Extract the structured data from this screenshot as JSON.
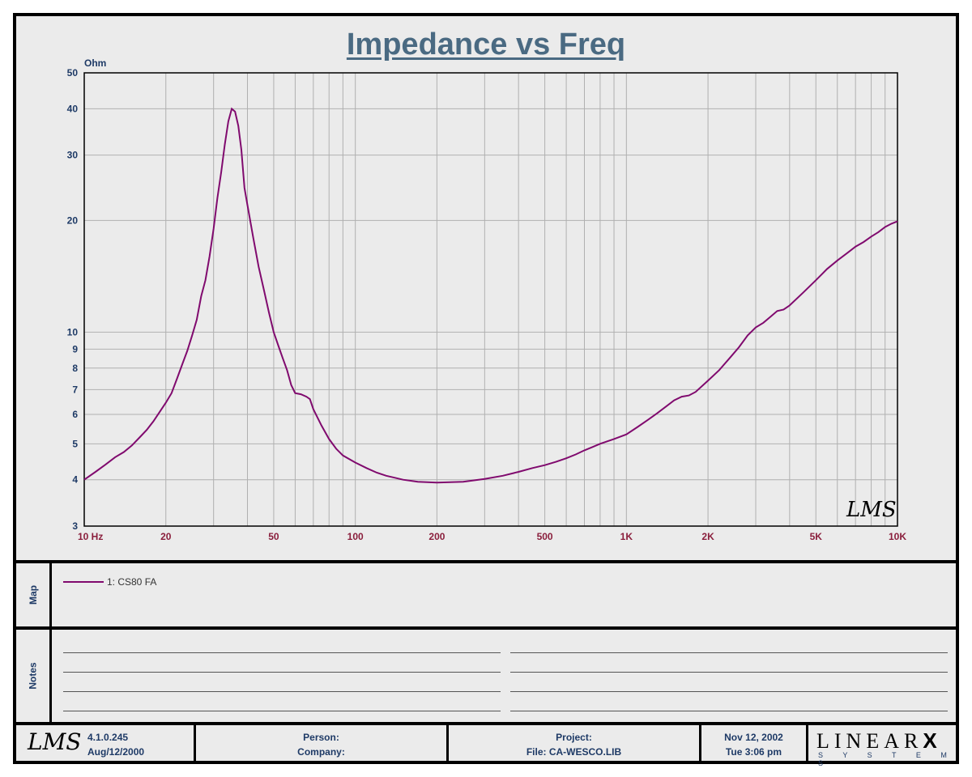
{
  "chart_data": {
    "type": "line",
    "title": "Impedance vs Freq",
    "ylabel": "Ohm",
    "xlabel": "",
    "x_scale": "log",
    "y_scale": "log",
    "xlim": [
      10,
      10000
    ],
    "ylim": [
      3,
      50
    ],
    "grid": true,
    "x_ticks": [
      {
        "v": 10,
        "label": "10  Hz"
      },
      {
        "v": 20,
        "label": "20"
      },
      {
        "v": 50,
        "label": "50"
      },
      {
        "v": 100,
        "label": "100"
      },
      {
        "v": 200,
        "label": "200"
      },
      {
        "v": 500,
        "label": "500"
      },
      {
        "v": 1000,
        "label": "1K"
      },
      {
        "v": 2000,
        "label": "2K"
      },
      {
        "v": 5000,
        "label": "5K"
      },
      {
        "v": 10000,
        "label": "10K"
      }
    ],
    "y_ticks": [
      {
        "v": 3,
        "label": "3"
      },
      {
        "v": 4,
        "label": "4"
      },
      {
        "v": 5,
        "label": "5"
      },
      {
        "v": 6,
        "label": "6"
      },
      {
        "v": 7,
        "label": "7"
      },
      {
        "v": 8,
        "label": "8"
      },
      {
        "v": 9,
        "label": "9"
      },
      {
        "v": 10,
        "label": "10"
      },
      {
        "v": 20,
        "label": "20"
      },
      {
        "v": 30,
        "label": "30"
      },
      {
        "v": 40,
        "label": "40"
      },
      {
        "v": 50,
        "label": "50"
      }
    ],
    "series": [
      {
        "name": "1: CS80 FA",
        "color": "#800a6e",
        "points": [
          [
            10,
            4.0
          ],
          [
            11,
            4.2
          ],
          [
            12,
            4.4
          ],
          [
            13,
            4.6
          ],
          [
            14,
            4.75
          ],
          [
            15,
            4.95
          ],
          [
            16,
            5.2
          ],
          [
            17,
            5.45
          ],
          [
            18,
            5.75
          ],
          [
            19,
            6.1
          ],
          [
            20,
            6.45
          ],
          [
            21,
            6.85
          ],
          [
            22,
            7.5
          ],
          [
            23,
            8.2
          ],
          [
            24,
            8.9
          ],
          [
            25,
            9.8
          ],
          [
            26,
            10.8
          ],
          [
            27,
            12.5
          ],
          [
            28,
            13.8
          ],
          [
            29,
            16.0
          ],
          [
            30,
            19.0
          ],
          [
            31,
            23.0
          ],
          [
            32,
            27.0
          ],
          [
            33,
            32.0
          ],
          [
            34,
            37.0
          ],
          [
            35,
            40.0
          ],
          [
            36,
            39.3
          ],
          [
            37,
            36.0
          ],
          [
            38,
            31.0
          ],
          [
            39,
            24.5
          ],
          [
            40,
            22.0
          ],
          [
            42,
            18.0
          ],
          [
            44,
            15.0
          ],
          [
            46,
            13.0
          ],
          [
            48,
            11.3
          ],
          [
            50,
            10.0
          ],
          [
            52,
            9.2
          ],
          [
            54,
            8.5
          ],
          [
            56,
            7.9
          ],
          [
            58,
            7.2
          ],
          [
            60,
            6.85
          ],
          [
            63,
            6.8
          ],
          [
            66,
            6.7
          ],
          [
            68,
            6.6
          ],
          [
            70,
            6.2
          ],
          [
            75,
            5.6
          ],
          [
            80,
            5.15
          ],
          [
            85,
            4.85
          ],
          [
            90,
            4.65
          ],
          [
            100,
            4.45
          ],
          [
            110,
            4.3
          ],
          [
            120,
            4.18
          ],
          [
            130,
            4.1
          ],
          [
            140,
            4.05
          ],
          [
            150,
            4.0
          ],
          [
            170,
            3.95
          ],
          [
            200,
            3.93
          ],
          [
            250,
            3.95
          ],
          [
            300,
            4.02
          ],
          [
            350,
            4.1
          ],
          [
            400,
            4.2
          ],
          [
            450,
            4.3
          ],
          [
            500,
            4.38
          ],
          [
            550,
            4.47
          ],
          [
            600,
            4.57
          ],
          [
            650,
            4.68
          ],
          [
            700,
            4.8
          ],
          [
            750,
            4.9
          ],
          [
            800,
            5.0
          ],
          [
            900,
            5.15
          ],
          [
            1000,
            5.3
          ],
          [
            1100,
            5.55
          ],
          [
            1200,
            5.8
          ],
          [
            1300,
            6.05
          ],
          [
            1400,
            6.3
          ],
          [
            1500,
            6.55
          ],
          [
            1600,
            6.7
          ],
          [
            1700,
            6.75
          ],
          [
            1800,
            6.9
          ],
          [
            2000,
            7.4
          ],
          [
            2200,
            7.9
          ],
          [
            2400,
            8.5
          ],
          [
            2600,
            9.1
          ],
          [
            2800,
            9.8
          ],
          [
            3000,
            10.3
          ],
          [
            3200,
            10.6
          ],
          [
            3400,
            11.0
          ],
          [
            3600,
            11.4
          ],
          [
            3800,
            11.5
          ],
          [
            4000,
            11.8
          ],
          [
            4500,
            12.8
          ],
          [
            5000,
            13.8
          ],
          [
            5500,
            14.8
          ],
          [
            6000,
            15.6
          ],
          [
            6500,
            16.3
          ],
          [
            7000,
            17.0
          ],
          [
            7500,
            17.5
          ],
          [
            8000,
            18.1
          ],
          [
            8500,
            18.6
          ],
          [
            9000,
            19.2
          ],
          [
            9500,
            19.6
          ],
          [
            10000,
            19.9
          ]
        ]
      }
    ],
    "watermark_text": "LMS"
  },
  "map": {
    "label": "Map",
    "legend_entry": "1: CS80 FA"
  },
  "notes": {
    "label": "Notes"
  },
  "footer": {
    "logo": "LMS",
    "version": "4.1.0.245",
    "version_date": "Aug/12/2000",
    "person_label": "Person:",
    "company_label": "Company:",
    "project_label": "Project:",
    "file_label": "File: CA-WESCO.LIB",
    "date": "Nov 12, 2002",
    "time": "Tue  3:06 pm",
    "brand_top": "LINEAR",
    "brand_x": "X",
    "brand_bottom": "S Y S T E M S"
  },
  "colors": {
    "title": "#4a6a82",
    "curve": "#800a6e",
    "y_ticks": "#1e3a66",
    "x_ticks": "#8a1e3c",
    "panel": "#ebebeb"
  }
}
